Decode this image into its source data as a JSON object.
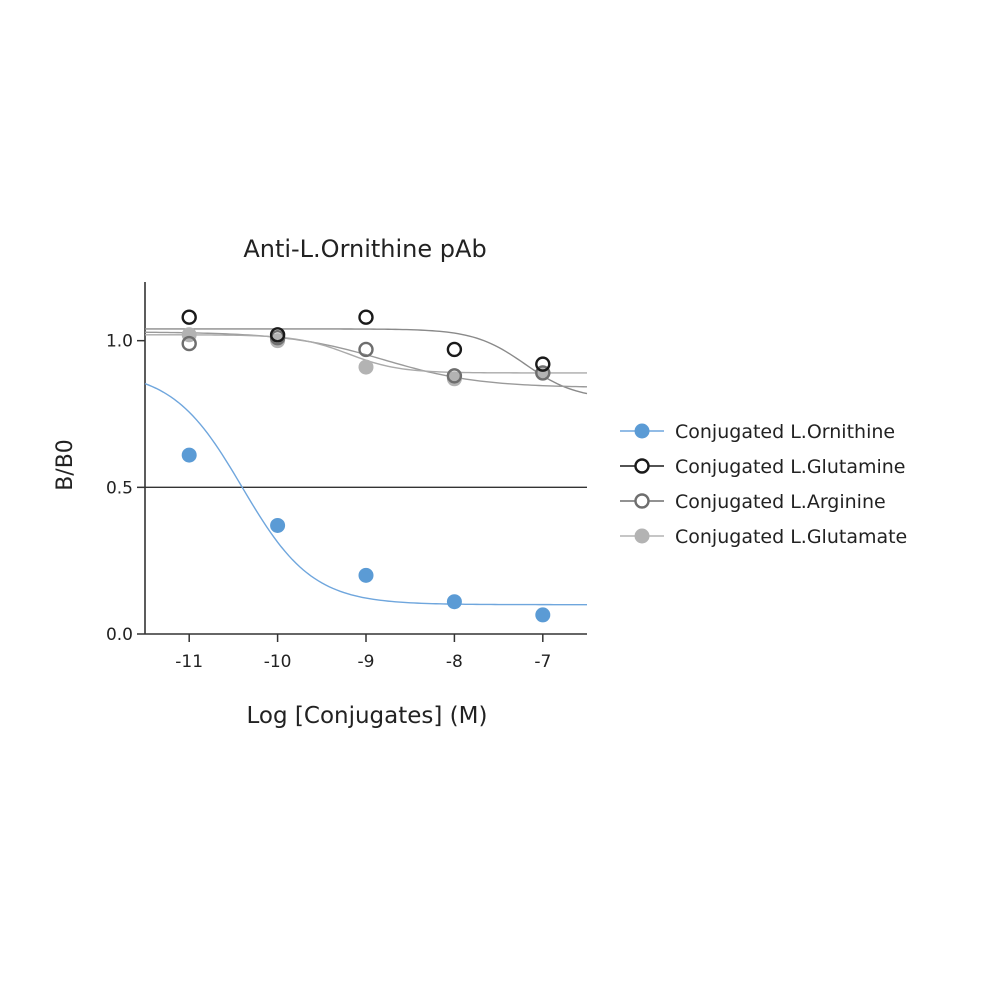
{
  "chart_data": {
    "type": "scatter",
    "title": "Anti-L.Ornithine pAb",
    "xlabel": "Log [Conjugates] (M)",
    "ylabel": "B/B0",
    "xlim": [
      -11.5,
      -6.5
    ],
    "ylim": [
      0,
      1.2
    ],
    "x_ticks": [
      -11,
      -10,
      -9,
      -8,
      -7
    ],
    "x_tick_labels": [
      "-11",
      "-10",
      "-9",
      "-8",
      "-7"
    ],
    "y_ticks": [
      0,
      0.5,
      1.0
    ],
    "y_tick_labels": [
      "0.0",
      "0.5",
      "1.0"
    ],
    "reference_line": {
      "y": 0.5
    },
    "grid": false,
    "legend_position": "right",
    "series": [
      {
        "name": "Conjugated L.Ornithine",
        "marker": "filled-circle",
        "color": "#5b9bd5",
        "x": [
          -11,
          -10,
          -9,
          -8,
          -7
        ],
        "y": [
          0.61,
          0.37,
          0.2,
          0.11,
          0.065
        ],
        "fit": {
          "top": 0.9,
          "bottom": 0.1,
          "logEC50": -10.4,
          "hill": 1.1
        }
      },
      {
        "name": "Conjugated L.Glutamine",
        "marker": "open-circle",
        "color": "#1a1a1a",
        "x": [
          -11,
          -10,
          -9,
          -8,
          -7
        ],
        "y": [
          1.08,
          1.02,
          1.08,
          0.97,
          0.92
        ],
        "fit": {
          "top": 1.04,
          "bottom": 0.8,
          "logEC50": -7.2,
          "hill": 1.5
        }
      },
      {
        "name": "Conjugated L.Arginine",
        "marker": "open-circle",
        "color": "#6e6e6e",
        "x": [
          -11,
          -10,
          -9,
          -8,
          -7
        ],
        "y": [
          0.99,
          1.01,
          0.97,
          0.88,
          0.89
        ],
        "fit": {
          "top": 1.03,
          "bottom": 0.84,
          "logEC50": -8.8,
          "hill": 0.8
        }
      },
      {
        "name": "Conjugated L.Glutamate",
        "marker": "filled-circle",
        "color": "#b3b3b3",
        "x": [
          -11,
          -10,
          -9,
          -8,
          -7
        ],
        "y": [
          1.02,
          1.0,
          0.91,
          0.87,
          0.89
        ],
        "fit": {
          "top": 1.02,
          "bottom": 0.89,
          "logEC50": -9.2,
          "hill": 1.5
        }
      }
    ]
  }
}
